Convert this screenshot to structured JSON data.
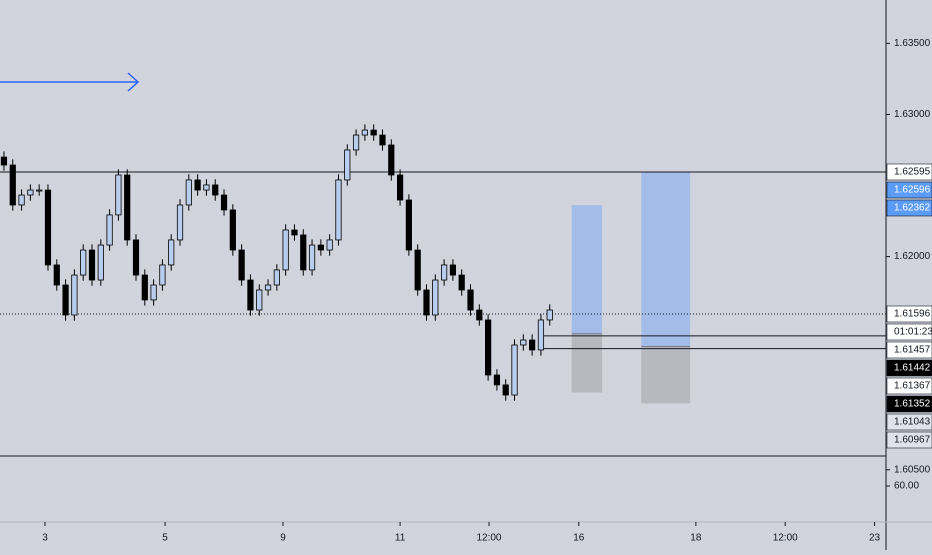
{
  "chart_data": {
    "type": "candlestick",
    "open": [
      1.627,
      1.62644,
      1.62363,
      1.62433,
      1.62468,
      1.62468,
      1.61941,
      1.618,
      1.61589,
      1.6187,
      1.62046,
      1.61835,
      1.62081,
      1.62293,
      1.62574,
      1.62117,
      1.6187,
      1.61695,
      1.618,
      1.61941,
      1.62117,
      1.62363,
      1.62539,
      1.62468,
      1.62504,
      1.62433,
      1.62328,
      1.62046,
      1.61835,
      1.61624,
      1.61765,
      1.618,
      1.61906,
      1.62187,
      1.62152,
      1.61906,
      1.62081,
      1.62046,
      1.62117,
      1.62539,
      1.6275,
      1.62855,
      1.6289,
      1.62855,
      1.62785,
      1.62574,
      1.62398,
      1.62046,
      1.61765,
      1.61589,
      1.61835,
      1.61941,
      1.6187,
      1.61765,
      1.61624,
      1.61554,
      1.61167,
      1.61097,
      1.61026,
      1.61378,
      1.61413,
      1.61343,
      1.61554
    ],
    "high": [
      1.6274,
      1.62684,
      1.62473,
      1.62508,
      1.62508,
      1.62508,
      1.61981,
      1.6184,
      1.6191,
      1.62086,
      1.62086,
      1.62121,
      1.62333,
      1.62614,
      1.62614,
      1.62157,
      1.6191,
      1.6184,
      1.61981,
      1.62157,
      1.62403,
      1.62579,
      1.62579,
      1.62544,
      1.62544,
      1.62473,
      1.62368,
      1.62086,
      1.61875,
      1.61805,
      1.6184,
      1.61946,
      1.62227,
      1.62227,
      1.62192,
      1.62121,
      1.62121,
      1.62157,
      1.62579,
      1.6279,
      1.62895,
      1.6293,
      1.6293,
      1.62895,
      1.62825,
      1.62614,
      1.62438,
      1.62086,
      1.61805,
      1.61875,
      1.61981,
      1.61981,
      1.6191,
      1.61805,
      1.61664,
      1.61594,
      1.61207,
      1.61137,
      1.61418,
      1.61453,
      1.61453,
      1.61594,
      1.61664
    ],
    "low": [
      1.62604,
      1.62323,
      1.62323,
      1.62393,
      1.62428,
      1.61901,
      1.6176,
      1.61549,
      1.61549,
      1.6183,
      1.61795,
      1.61795,
      1.62041,
      1.62253,
      1.62077,
      1.6183,
      1.61655,
      1.61655,
      1.6176,
      1.61901,
      1.62077,
      1.62323,
      1.62428,
      1.62428,
      1.62393,
      1.62288,
      1.62006,
      1.61795,
      1.61584,
      1.61584,
      1.61725,
      1.6176,
      1.61866,
      1.62112,
      1.61866,
      1.61866,
      1.62006,
      1.62006,
      1.62077,
      1.62499,
      1.6271,
      1.62815,
      1.62815,
      1.62745,
      1.62534,
      1.62358,
      1.62006,
      1.61725,
      1.61549,
      1.61549,
      1.61795,
      1.6183,
      1.61725,
      1.61584,
      1.61514,
      1.61127,
      1.61057,
      1.60986,
      1.60986,
      1.61338,
      1.61303,
      1.61303,
      1.61514
    ],
    "close": [
      1.62644,
      1.62363,
      1.62433,
      1.62468,
      1.62468,
      1.61941,
      1.618,
      1.61589,
      1.6187,
      1.62046,
      1.61835,
      1.62081,
      1.62293,
      1.62574,
      1.62117,
      1.6187,
      1.61695,
      1.618,
      1.61941,
      1.62117,
      1.62363,
      1.62539,
      1.62468,
      1.62504,
      1.62433,
      1.62328,
      1.62046,
      1.61835,
      1.61624,
      1.61765,
      1.618,
      1.61906,
      1.62187,
      1.62152,
      1.61906,
      1.62081,
      1.62046,
      1.62117,
      1.62539,
      1.6275,
      1.62855,
      1.6289,
      1.62855,
      1.62785,
      1.62574,
      1.62398,
      1.62046,
      1.61765,
      1.61589,
      1.61835,
      1.61941,
      1.6187,
      1.61765,
      1.61624,
      1.61554,
      1.61167,
      1.61097,
      1.61026,
      1.61378,
      1.61413,
      1.61343,
      1.61554,
      1.61624
    ],
    "up_color": "#b9cdee",
    "down_color": "#000000",
    "xlim": [
      -0.45,
      100.2
    ],
    "xticks": [
      {
        "value": 4.66,
        "label": "3"
      },
      {
        "value": 18.3,
        "label": "5"
      },
      {
        "value": 31.7,
        "label": "9"
      },
      {
        "value": 45,
        "label": "11"
      },
      {
        "value": 55.1,
        "label": "12:00"
      },
      {
        "value": 65.3,
        "label": "16"
      },
      {
        "value": 78.6,
        "label": "18"
      },
      {
        "value": 88.75,
        "label": "12:00"
      },
      {
        "value": 98.9,
        "label": "23"
      }
    ],
    "ylim": [
      1.60597,
      1.63805
    ],
    "yticks": [
      {
        "value": 1.635,
        "label": "1.63500"
      },
      {
        "value": 1.63,
        "label": "1.63000"
      },
      {
        "value": 1.62,
        "label": "1.62000"
      },
      {
        "value": 1.605,
        "label": "1.60500"
      }
    ],
    "hlines": [
      {
        "value": 1.62595,
        "style": "solid"
      },
      {
        "value": 1.61596,
        "style": "dotted"
      },
      {
        "value": 1.61442,
        "style": "solid",
        "from": 60.9
      },
      {
        "value": 1.61352,
        "style": "solid",
        "from": 60.9
      }
    ],
    "positions": [
      {
        "from": 64.5,
        "to": 67.95,
        "target": 1.62362,
        "entry": 1.61457,
        "stop": 1.61043
      },
      {
        "from": 72.4,
        "to": 77.95,
        "target": 1.62596,
        "entry": 1.61367,
        "stop": 1.60967
      }
    ],
    "price_tags": [
      {
        "value": 1.62595,
        "bg": "#ffffff",
        "fg": "#131722"
      },
      {
        "value": 1.62596,
        "bg": "#5b9cf6",
        "fg": "#ffffff"
      },
      {
        "value": 1.62362,
        "bg": "#5b9cf6",
        "fg": "#ffffff"
      },
      {
        "value": 1.61596,
        "bg": "#ffffff",
        "fg": "#131722"
      },
      {
        "label": "01:01:23",
        "bg": "#ffffff",
        "fg": "#131722"
      },
      {
        "value": 1.61457,
        "bg": "#ffffff",
        "fg": "#131722"
      },
      {
        "value": 1.61442,
        "bg": "#000000",
        "fg": "#ffffff"
      },
      {
        "value": 1.61367,
        "bg": "#ffffff",
        "fg": "#131722"
      },
      {
        "value": 1.61352,
        "bg": "#000000",
        "fg": "#ffffff"
      },
      {
        "value": 1.61043,
        "bg": "#e0e3eb",
        "fg": "#131722"
      },
      {
        "value": 1.60967,
        "bg": "#e0e3eb",
        "fg": "#131722"
      }
    ],
    "indicator_label": "60.00"
  }
}
